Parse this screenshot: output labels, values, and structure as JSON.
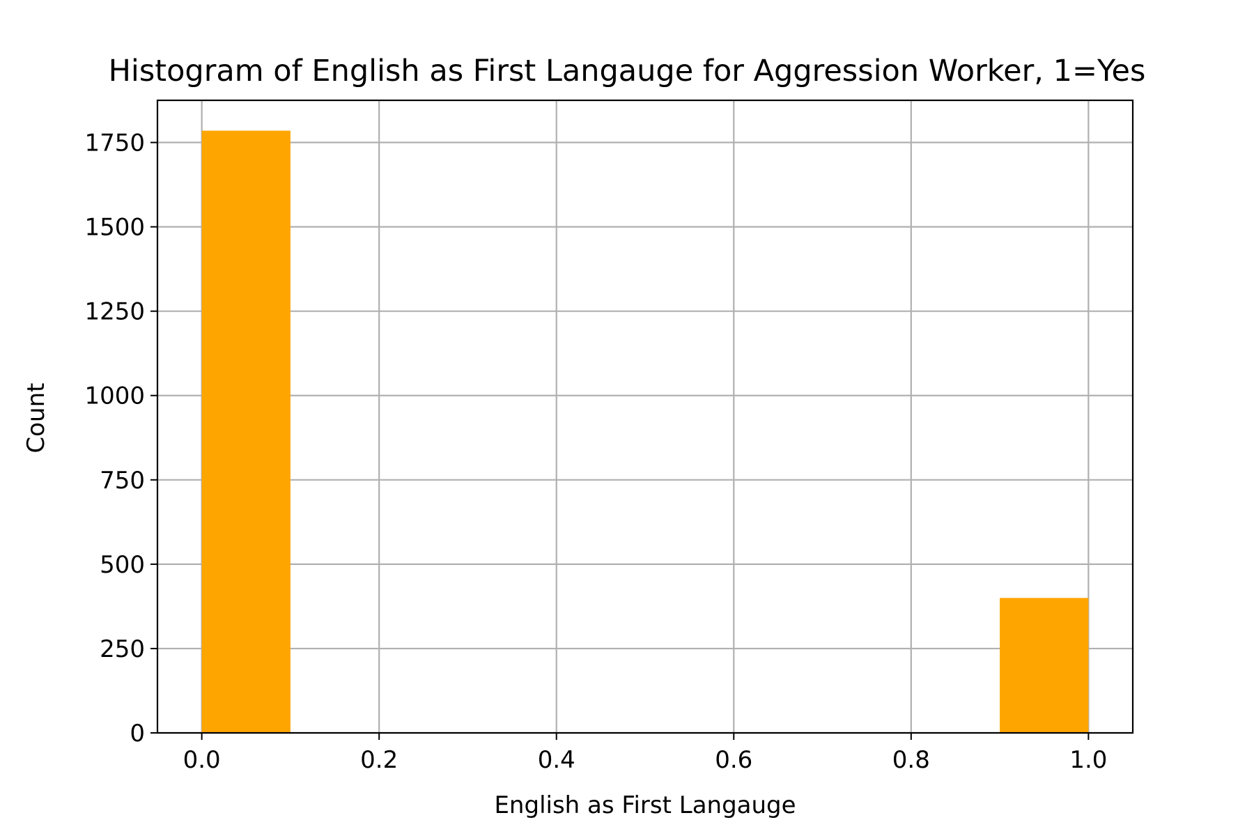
{
  "chart_data": {
    "type": "bar",
    "title": "Histogram of English as First Langauge for Aggression Worker, 1=Yes",
    "xlabel": "English as First Langauge",
    "ylabel": "Count",
    "xlim": [
      -0.05,
      1.05
    ],
    "ylim": [
      0,
      1875
    ],
    "grid": true,
    "bar_color": "#ffa500",
    "x_ticks": [
      0.0,
      0.2,
      0.4,
      0.6,
      0.8,
      1.0
    ],
    "x_tick_labels": [
      "0.0",
      "0.2",
      "0.4",
      "0.6",
      "0.8",
      "1.0"
    ],
    "y_ticks": [
      0,
      250,
      500,
      750,
      1000,
      1250,
      1500,
      1750
    ],
    "y_tick_labels": [
      "0",
      "250",
      "500",
      "750",
      "1000",
      "1250",
      "1500",
      "1750"
    ],
    "bins": [
      {
        "start": 0.0,
        "end": 0.1,
        "value": 1785
      },
      {
        "start": 0.1,
        "end": 0.2,
        "value": 0
      },
      {
        "start": 0.2,
        "end": 0.3,
        "value": 0
      },
      {
        "start": 0.3,
        "end": 0.4,
        "value": 0
      },
      {
        "start": 0.4,
        "end": 0.5,
        "value": 0
      },
      {
        "start": 0.5,
        "end": 0.6,
        "value": 0
      },
      {
        "start": 0.6,
        "end": 0.7,
        "value": 0
      },
      {
        "start": 0.7,
        "end": 0.8,
        "value": 0
      },
      {
        "start": 0.8,
        "end": 0.9,
        "value": 0
      },
      {
        "start": 0.9,
        "end": 1.0,
        "value": 400
      }
    ]
  }
}
